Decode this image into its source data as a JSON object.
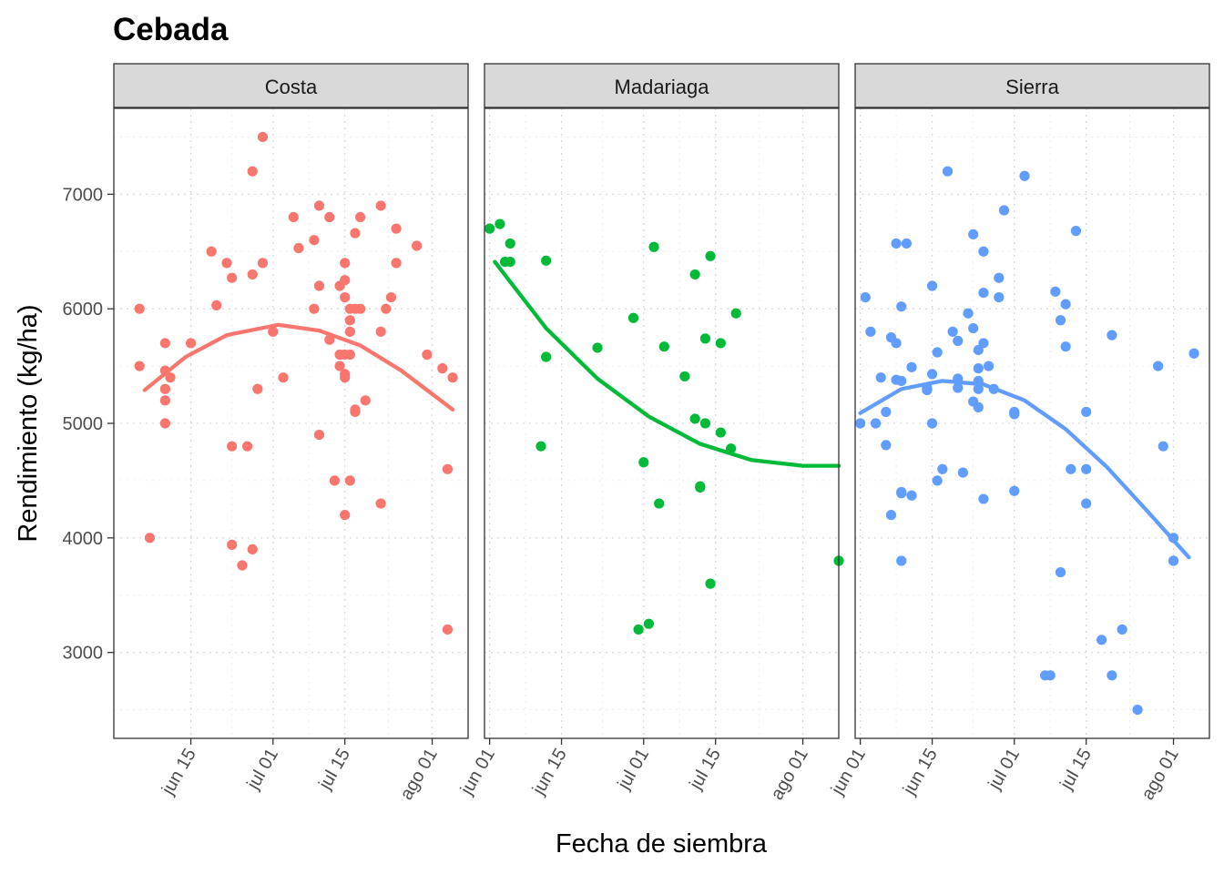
{
  "chart_data": {
    "type": "scatter",
    "title": "Cebada",
    "xlabel": "Fecha de siembra",
    "ylabel": "Rendimiento (kg/ha)",
    "x_unit": "date",
    "x_range": [
      "2021-05-31",
      "2021-08-08"
    ],
    "ylim": [
      2250,
      7750
    ],
    "y_ticks": [
      3000,
      4000,
      5000,
      6000,
      7000
    ],
    "grid": "dotted",
    "legend": "none",
    "trend": "quadratic smooth",
    "panels": [
      {
        "name": "Costa",
        "color": "#F8766D",
        "x_ticks": [
          {
            "date": "2021-06-15",
            "label": "jun 15"
          },
          {
            "date": "2021-07-01",
            "label": "jul 01"
          },
          {
            "date": "2021-07-15",
            "label": "jul 15"
          },
          {
            "date": "2021-08-01",
            "label": "ago 01"
          }
        ],
        "points": [
          [
            "2021-06-05",
            6000
          ],
          [
            "2021-06-05",
            5500
          ],
          [
            "2021-06-07",
            4000
          ],
          [
            "2021-06-10",
            5700
          ],
          [
            "2021-06-10",
            5460
          ],
          [
            "2021-06-10",
            5300
          ],
          [
            "2021-06-10",
            5200
          ],
          [
            "2021-06-10",
            5000
          ],
          [
            "2021-06-11",
            5400
          ],
          [
            "2021-06-15",
            5700
          ],
          [
            "2021-06-19",
            6500
          ],
          [
            "2021-06-20",
            6030
          ],
          [
            "2021-06-22",
            6400
          ],
          [
            "2021-06-23",
            6270
          ],
          [
            "2021-06-23",
            4800
          ],
          [
            "2021-06-23",
            3940
          ],
          [
            "2021-06-25",
            3760
          ],
          [
            "2021-06-26",
            4800
          ],
          [
            "2021-06-27",
            7200
          ],
          [
            "2021-06-27",
            6300
          ],
          [
            "2021-06-27",
            3900
          ],
          [
            "2021-06-28",
            5300
          ],
          [
            "2021-06-29",
            7500
          ],
          [
            "2021-06-29",
            6400
          ],
          [
            "2021-07-01",
            5800
          ],
          [
            "2021-07-03",
            5400
          ],
          [
            "2021-07-05",
            6800
          ],
          [
            "2021-07-06",
            6530
          ],
          [
            "2021-07-09",
            6600
          ],
          [
            "2021-07-09",
            6000
          ],
          [
            "2021-07-10",
            6900
          ],
          [
            "2021-07-10",
            6200
          ],
          [
            "2021-07-10",
            4900
          ],
          [
            "2021-07-12",
            6800
          ],
          [
            "2021-07-12",
            5730
          ],
          [
            "2021-07-13",
            4500
          ],
          [
            "2021-07-14",
            6200
          ],
          [
            "2021-07-14",
            5600
          ],
          [
            "2021-07-14",
            5500
          ],
          [
            "2021-07-15",
            6400
          ],
          [
            "2021-07-15",
            6250
          ],
          [
            "2021-07-15",
            6100
          ],
          [
            "2021-07-15",
            5600
          ],
          [
            "2021-07-15",
            5430
          ],
          [
            "2021-07-15",
            5400
          ],
          [
            "2021-07-15",
            4200
          ],
          [
            "2021-07-16",
            6000
          ],
          [
            "2021-07-16",
            5900
          ],
          [
            "2021-07-16",
            5800
          ],
          [
            "2021-07-16",
            5600
          ],
          [
            "2021-07-16",
            4500
          ],
          [
            "2021-07-17",
            6660
          ],
          [
            "2021-07-17",
            6000
          ],
          [
            "2021-07-17",
            5120
          ],
          [
            "2021-07-17",
            5100
          ],
          [
            "2021-07-18",
            6800
          ],
          [
            "2021-07-18",
            6000
          ],
          [
            "2021-07-19",
            5200
          ],
          [
            "2021-07-22",
            6900
          ],
          [
            "2021-07-22",
            5800
          ],
          [
            "2021-07-22",
            4300
          ],
          [
            "2021-07-23",
            6000
          ],
          [
            "2021-07-24",
            6100
          ],
          [
            "2021-07-25",
            6700
          ],
          [
            "2021-07-25",
            6400
          ],
          [
            "2021-07-29",
            6550
          ],
          [
            "2021-07-31",
            5600
          ],
          [
            "2021-08-03",
            5480
          ],
          [
            "2021-08-04",
            4600
          ],
          [
            "2021-08-04",
            3200
          ],
          [
            "2021-08-05",
            5400
          ]
        ],
        "trend_points": [
          [
            "2021-06-06",
            5290
          ],
          [
            "2021-06-14",
            5580
          ],
          [
            "2021-06-22",
            5770
          ],
          [
            "2021-07-02",
            5860
          ],
          [
            "2021-07-10",
            5810
          ],
          [
            "2021-07-18",
            5680
          ],
          [
            "2021-07-26",
            5460
          ],
          [
            "2021-08-05",
            5120
          ]
        ]
      },
      {
        "name": "Madariaga",
        "color": "#00BA38",
        "x_ticks": [
          {
            "date": "2021-06-01",
            "label": "jun 01"
          },
          {
            "date": "2021-06-15",
            "label": "jun 15"
          },
          {
            "date": "2021-07-01",
            "label": "jul 01"
          },
          {
            "date": "2021-07-15",
            "label": "jul 15"
          },
          {
            "date": "2021-08-01",
            "label": "ago 01"
          }
        ],
        "points": [
          [
            "2021-06-01",
            6700
          ],
          [
            "2021-06-03",
            6740
          ],
          [
            "2021-06-04",
            6410
          ],
          [
            "2021-06-05",
            6570
          ],
          [
            "2021-06-05",
            6410
          ],
          [
            "2021-06-11",
            4800
          ],
          [
            "2021-06-12",
            6420
          ],
          [
            "2021-06-12",
            5580
          ],
          [
            "2021-06-22",
            5660
          ],
          [
            "2021-06-29",
            5920
          ],
          [
            "2021-06-30",
            3200
          ],
          [
            "2021-07-01",
            4660
          ],
          [
            "2021-07-02",
            3250
          ],
          [
            "2021-07-03",
            6540
          ],
          [
            "2021-07-04",
            4300
          ],
          [
            "2021-07-05",
            5670
          ],
          [
            "2021-07-09",
            5410
          ],
          [
            "2021-07-11",
            6300
          ],
          [
            "2021-07-11",
            5040
          ],
          [
            "2021-07-12",
            4450
          ],
          [
            "2021-07-12",
            4440
          ],
          [
            "2021-07-13",
            5740
          ],
          [
            "2021-07-13",
            5000
          ],
          [
            "2021-07-14",
            6460
          ],
          [
            "2021-07-14",
            3600
          ],
          [
            "2021-07-16",
            5700
          ],
          [
            "2021-07-16",
            4920
          ],
          [
            "2021-07-18",
            4780
          ],
          [
            "2021-07-19",
            5960
          ],
          [
            "2021-08-08",
            3800
          ]
        ],
        "trend_points": [
          [
            "2021-06-02",
            6410
          ],
          [
            "2021-06-12",
            5830
          ],
          [
            "2021-06-22",
            5390
          ],
          [
            "2021-07-02",
            5060
          ],
          [
            "2021-07-12",
            4820
          ],
          [
            "2021-07-22",
            4680
          ],
          [
            "2021-08-01",
            4630
          ],
          [
            "2021-08-08",
            4630
          ]
        ]
      },
      {
        "name": "Sierra",
        "color": "#619CFF",
        "x_ticks": [
          {
            "date": "2021-06-01",
            "label": "jun 01"
          },
          {
            "date": "2021-06-15",
            "label": "jun 15"
          },
          {
            "date": "2021-07-01",
            "label": "jul 01"
          },
          {
            "date": "2021-07-15",
            "label": "jul 15"
          },
          {
            "date": "2021-08-01",
            "label": "ago 01"
          }
        ],
        "points": [
          [
            "2021-06-01",
            5000
          ],
          [
            "2021-06-02",
            6100
          ],
          [
            "2021-06-03",
            5800
          ],
          [
            "2021-06-04",
            5000
          ],
          [
            "2021-06-05",
            5400
          ],
          [
            "2021-06-06",
            5100
          ],
          [
            "2021-06-06",
            4810
          ],
          [
            "2021-06-07",
            5750
          ],
          [
            "2021-06-07",
            4200
          ],
          [
            "2021-06-08",
            6570
          ],
          [
            "2021-06-08",
            5700
          ],
          [
            "2021-06-08",
            5380
          ],
          [
            "2021-06-09",
            6020
          ],
          [
            "2021-06-09",
            5370
          ],
          [
            "2021-06-09",
            4400
          ],
          [
            "2021-06-09",
            4390
          ],
          [
            "2021-06-09",
            3800
          ],
          [
            "2021-06-10",
            6570
          ],
          [
            "2021-06-11",
            5490
          ],
          [
            "2021-06-11",
            4370
          ],
          [
            "2021-06-14",
            5290
          ],
          [
            "2021-06-14",
            5310
          ],
          [
            "2021-06-15",
            6200
          ],
          [
            "2021-06-15",
            5430
          ],
          [
            "2021-06-15",
            5000
          ],
          [
            "2021-06-16",
            5620
          ],
          [
            "2021-06-16",
            4500
          ],
          [
            "2021-06-17",
            4600
          ],
          [
            "2021-06-18",
            7200
          ],
          [
            "2021-06-19",
            5800
          ],
          [
            "2021-06-20",
            5720
          ],
          [
            "2021-06-20",
            5390
          ],
          [
            "2021-06-20",
            5310
          ],
          [
            "2021-06-21",
            4570
          ],
          [
            "2021-06-22",
            5960
          ],
          [
            "2021-06-23",
            6650
          ],
          [
            "2021-06-23",
            5830
          ],
          [
            "2021-06-23",
            5190
          ],
          [
            "2021-06-24",
            5640
          ],
          [
            "2021-06-24",
            5480
          ],
          [
            "2021-06-24",
            5370
          ],
          [
            "2021-06-24",
            5300
          ],
          [
            "2021-06-24",
            5140
          ],
          [
            "2021-06-25",
            6500
          ],
          [
            "2021-06-25",
            6140
          ],
          [
            "2021-06-25",
            5700
          ],
          [
            "2021-06-25",
            4340
          ],
          [
            "2021-06-26",
            5500
          ],
          [
            "2021-06-27",
            5300
          ],
          [
            "2021-06-28",
            6270
          ],
          [
            "2021-06-28",
            6100
          ],
          [
            "2021-06-29",
            6860
          ],
          [
            "2021-07-01",
            5100
          ],
          [
            "2021-07-01",
            5080
          ],
          [
            "2021-07-01",
            4410
          ],
          [
            "2021-07-03",
            7160
          ],
          [
            "2021-07-07",
            2800
          ],
          [
            "2021-07-08",
            2800
          ],
          [
            "2021-07-09",
            6150
          ],
          [
            "2021-07-10",
            5900
          ],
          [
            "2021-07-10",
            3700
          ],
          [
            "2021-07-11",
            6040
          ],
          [
            "2021-07-11",
            5670
          ],
          [
            "2021-07-12",
            4600
          ],
          [
            "2021-07-13",
            6680
          ],
          [
            "2021-07-15",
            5100
          ],
          [
            "2021-07-15",
            4600
          ],
          [
            "2021-07-15",
            4300
          ],
          [
            "2021-07-18",
            3110
          ],
          [
            "2021-07-20",
            5770
          ],
          [
            "2021-07-20",
            2800
          ],
          [
            "2021-07-22",
            3200
          ],
          [
            "2021-07-25",
            2500
          ],
          [
            "2021-07-29",
            5500
          ],
          [
            "2021-07-30",
            4800
          ],
          [
            "2021-08-01",
            4000
          ],
          [
            "2021-08-01",
            3800
          ],
          [
            "2021-08-05",
            5610
          ]
        ],
        "trend_points": [
          [
            "2021-06-01",
            5090
          ],
          [
            "2021-06-09",
            5300
          ],
          [
            "2021-06-17",
            5370
          ],
          [
            "2021-06-25",
            5340
          ],
          [
            "2021-07-03",
            5200
          ],
          [
            "2021-07-11",
            4950
          ],
          [
            "2021-07-19",
            4620
          ],
          [
            "2021-07-27",
            4230
          ],
          [
            "2021-08-04",
            3830
          ]
        ]
      }
    ]
  }
}
